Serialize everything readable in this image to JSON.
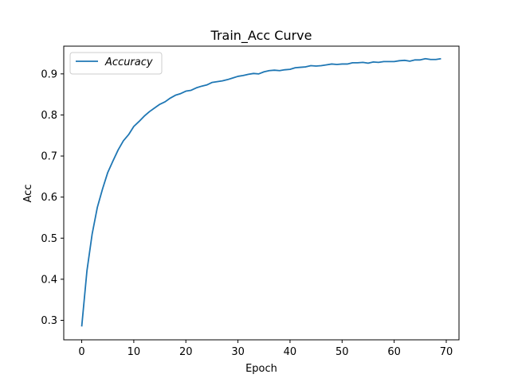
{
  "chart_data": {
    "type": "line",
    "title": "Train_Acc Curve",
    "xlabel": "Epoch",
    "ylabel": "Acc",
    "xlim": [
      -3.45,
      72.45
    ],
    "ylim": [
      0.2525,
      0.9675
    ],
    "xticks": [
      0,
      10,
      20,
      30,
      40,
      50,
      60,
      70
    ],
    "yticks": [
      0.3,
      0.4,
      0.5,
      0.6,
      0.7,
      0.8,
      0.9
    ],
    "grid": false,
    "legend": {
      "position": "top-left"
    },
    "series": [
      {
        "name": "Accuracy",
        "color": "#1f77b4",
        "x": [
          0,
          1,
          2,
          3,
          4,
          5,
          6,
          7,
          8,
          9,
          10,
          11,
          12,
          13,
          14,
          15,
          16,
          17,
          18,
          19,
          20,
          21,
          22,
          23,
          24,
          25,
          26,
          27,
          28,
          29,
          30,
          31,
          32,
          33,
          34,
          35,
          36,
          37,
          38,
          39,
          40,
          41,
          42,
          43,
          44,
          45,
          46,
          47,
          48,
          49,
          50,
          51,
          52,
          53,
          54,
          55,
          56,
          57,
          58,
          59,
          60,
          61,
          62,
          63,
          64,
          65,
          66,
          67,
          68,
          69
        ],
        "values": [
          0.285,
          0.42,
          0.51,
          0.575,
          0.62,
          0.66,
          0.688,
          0.715,
          0.737,
          0.752,
          0.772,
          0.784,
          0.797,
          0.808,
          0.817,
          0.826,
          0.832,
          0.841,
          0.848,
          0.852,
          0.858,
          0.86,
          0.866,
          0.87,
          0.873,
          0.879,
          0.881,
          0.883,
          0.886,
          0.89,
          0.894,
          0.896,
          0.899,
          0.901,
          0.9,
          0.905,
          0.908,
          0.909,
          0.908,
          0.91,
          0.911,
          0.915,
          0.916,
          0.917,
          0.92,
          0.919,
          0.92,
          0.922,
          0.924,
          0.923,
          0.924,
          0.924,
          0.927,
          0.927,
          0.928,
          0.926,
          0.929,
          0.928,
          0.93,
          0.93,
          0.93,
          0.932,
          0.933,
          0.931,
          0.934,
          0.934,
          0.937,
          0.935,
          0.935,
          0.937
        ]
      }
    ]
  }
}
